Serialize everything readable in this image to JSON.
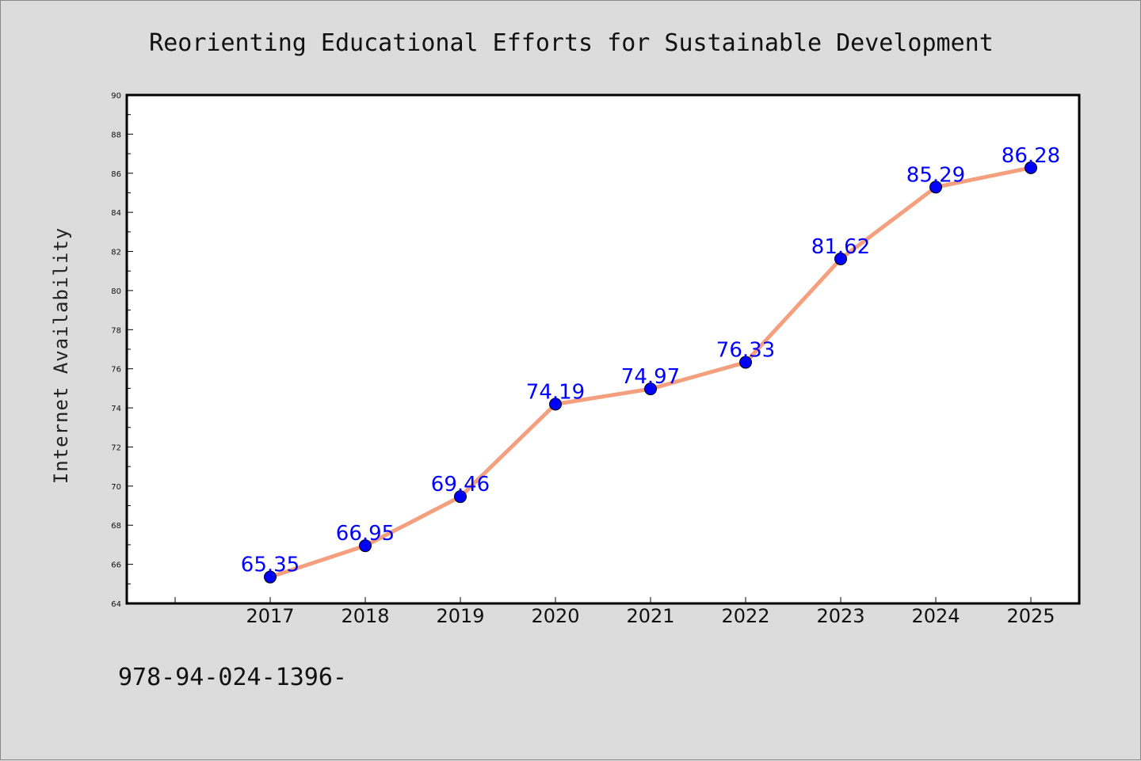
{
  "chart_data": {
    "type": "line",
    "title": "Reorienting Educational Efforts for Sustainable Development",
    "ylabel": "Internet Availability",
    "xlabel": "",
    "categories": [
      "2017",
      "2018",
      "2019",
      "2020",
      "2021",
      "2022",
      "2023",
      "2024",
      "2025"
    ],
    "values": [
      65.35,
      66.95,
      69.46,
      74.19,
      74.97,
      76.33,
      81.62,
      85.29,
      86.28
    ],
    "data_labels": [
      "65.35",
      "66.95",
      "69.46",
      "74.19",
      "74.97",
      "76.33",
      "81.62",
      "85.29",
      "86.28"
    ],
    "ylim": [
      64,
      90
    ],
    "yticks": [
      "64",
      "66",
      "68",
      "70",
      "72",
      "74",
      "76",
      "78",
      "80",
      "82",
      "84",
      "86",
      "88",
      "90"
    ],
    "grid": false,
    "line_color": "#f4a07e",
    "marker_color": "#0000ff",
    "label_color": "#0000ff",
    "background_color": "#dcdcdc",
    "plot_background": "#ffffff"
  },
  "footer": {
    "text": "978-94-024-1396-"
  }
}
